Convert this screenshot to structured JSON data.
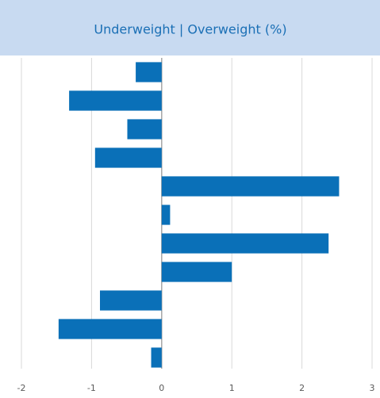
{
  "chart_data": {
    "type": "barh",
    "title": "Underweight | Overweight (%)",
    "categories": [
      null,
      null,
      null,
      null,
      null,
      null,
      null,
      null,
      null,
      null,
      null
    ],
    "values": [
      -0.37,
      -1.32,
      -0.49,
      -0.95,
      2.53,
      0.12,
      2.38,
      1.0,
      -0.88,
      -1.47,
      -0.15
    ],
    "color": "#0a70b8",
    "xlim": [
      -2,
      3
    ],
    "xticks": [
      -2,
      -1,
      0,
      1,
      2,
      3
    ],
    "grid": true
  }
}
